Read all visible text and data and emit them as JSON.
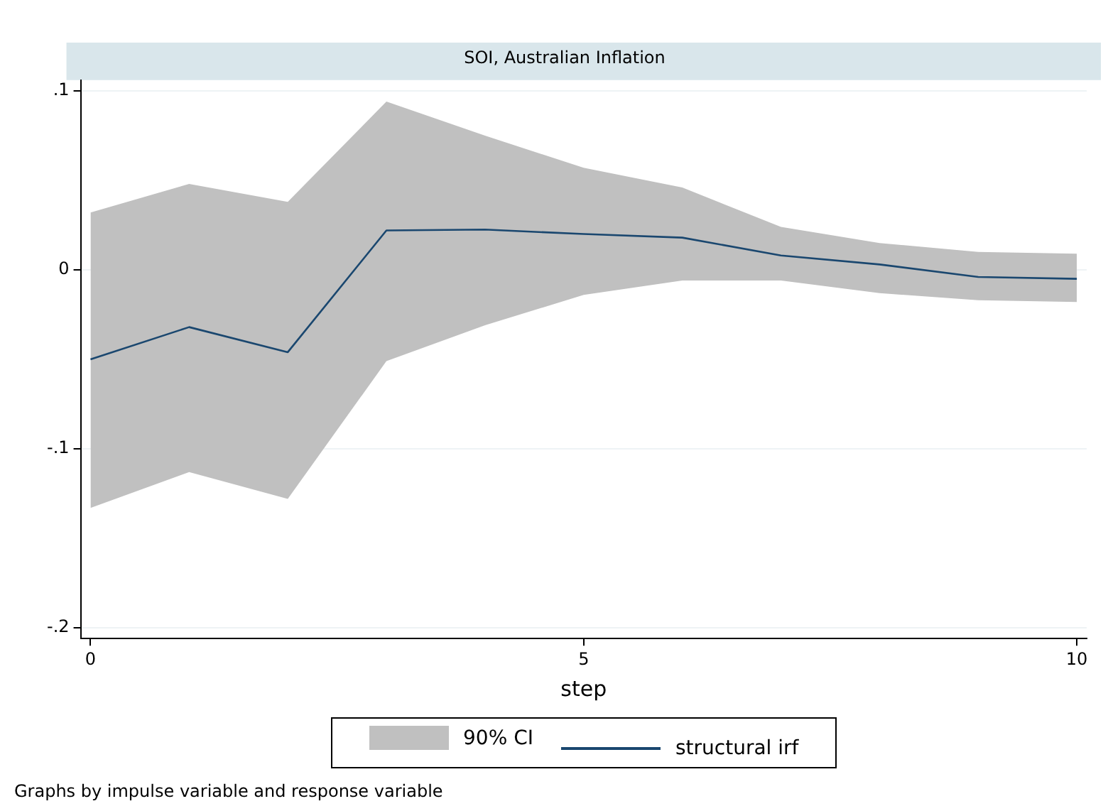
{
  "chart_data": {
    "type": "line",
    "title": "SOI, Australian Inflation",
    "xlabel": "step",
    "x": [
      0,
      1,
      2,
      3,
      4,
      5,
      6,
      7,
      8,
      9,
      10
    ],
    "series": [
      {
        "name": "structural irf",
        "color": "#1a476f",
        "values": [
          -0.05,
          -0.032,
          -0.046,
          0.022,
          0.0225,
          0.02,
          0.018,
          0.008,
          0.003,
          -0.004,
          -0.005
        ],
        "lower": [
          -0.133,
          -0.113,
          -0.128,
          -0.051,
          -0.031,
          -0.014,
          -0.006,
          -0.006,
          -0.013,
          -0.017,
          -0.018
        ],
        "upper": [
          0.032,
          0.048,
          0.038,
          0.094,
          0.075,
          0.057,
          0.046,
          0.024,
          0.015,
          0.01,
          0.009
        ]
      }
    ],
    "xlim": [
      -0.1,
      10.1
    ],
    "ylim": [
      -0.206,
      0.106
    ],
    "xticks": [
      0,
      5,
      10
    ],
    "yticks": [
      {
        "value": -0.2,
        "label": "-.2"
      },
      {
        "value": -0.1,
        "label": "-.1"
      },
      {
        "value": 0,
        "label": "0"
      },
      {
        "value": 0.1,
        "label": ".1"
      }
    ],
    "grid": "y",
    "legend": "bottom",
    "marker": "none",
    "annotations": [
      "90% CI",
      "Graphs by impulse variable and response variable"
    ]
  }
}
